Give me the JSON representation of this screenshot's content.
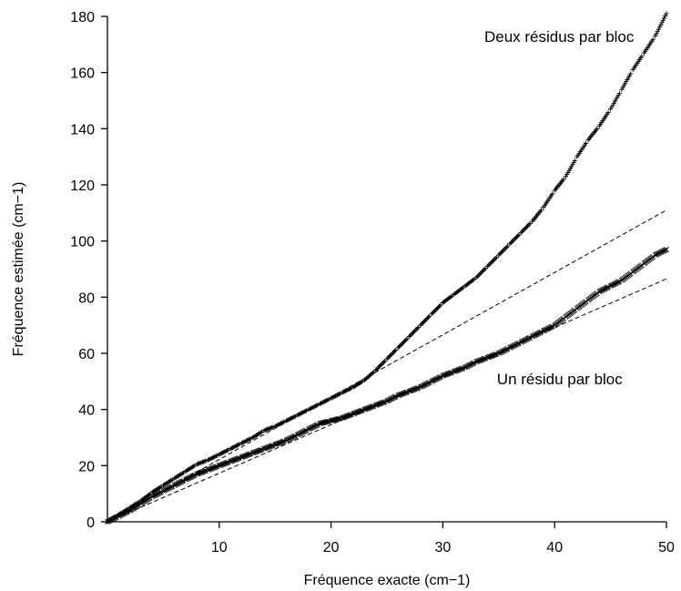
{
  "chart_data": {
    "type": "scatter",
    "title": "",
    "xlabel": "Fréquence exacte (cm−1)",
    "ylabel": "Fréquence estimée (cm−1)",
    "xlim": [
      0,
      50
    ],
    "ylim": [
      0,
      180
    ],
    "xticks": [
      10,
      20,
      30,
      40,
      50
    ],
    "yticks": [
      0,
      20,
      40,
      60,
      80,
      100,
      120,
      140,
      160,
      180
    ],
    "grid": false,
    "legend": "none",
    "colors": {
      "marks": "#000000",
      "axes": "#000000"
    },
    "annotations": [
      {
        "text": "Deux résidus par bloc",
        "x": 30,
        "y": 171
      },
      {
        "text": "Un résidu par bloc",
        "x": 35,
        "y": 49
      }
    ],
    "series": [
      {
        "marker": "plus",
        "x": [
          0,
          1,
          2,
          3,
          4,
          5,
          6,
          7,
          8,
          9,
          10,
          11,
          12,
          13,
          14,
          15,
          16,
          17,
          18,
          19,
          20,
          21,
          22,
          23,
          24,
          25,
          26,
          27,
          28,
          29,
          30,
          31,
          32,
          33,
          34,
          35,
          36,
          37,
          38,
          39,
          40,
          41,
          42,
          43,
          44,
          45,
          46,
          47,
          48,
          49,
          50
        ],
        "y": [
          0,
          2.5,
          5,
          7.5,
          10.5,
          13,
          15.5,
          18,
          20.5,
          22,
          24,
          26,
          28,
          30,
          32.5,
          34,
          36,
          38,
          40,
          42,
          44,
          46,
          48,
          50.5,
          54,
          58,
          62,
          66,
          70,
          74,
          78,
          81,
          84,
          87,
          91,
          95,
          99,
          103,
          107,
          112,
          118,
          123,
          130,
          136,
          141,
          147,
          154,
          161,
          167,
          173,
          181
        ]
      },
      {
        "marker": "cross",
        "x": [
          0,
          1,
          2,
          3,
          4,
          5,
          6,
          7,
          8,
          9,
          10,
          11,
          12,
          13,
          14,
          15,
          16,
          17,
          18,
          19,
          20,
          21,
          22,
          23,
          24,
          25,
          26,
          27,
          28,
          29,
          30,
          31,
          32,
          33,
          34,
          35,
          36,
          37,
          38,
          39,
          40,
          41,
          42,
          43,
          44,
          45,
          46,
          47,
          48,
          49,
          50
        ],
        "y": [
          0,
          2,
          4,
          6.5,
          9,
          11,
          13,
          15,
          17,
          18.5,
          20,
          21.5,
          23,
          24.5,
          26,
          27.5,
          29,
          31,
          33,
          35,
          36,
          37,
          38.5,
          40,
          41.5,
          43,
          45,
          46.5,
          48,
          50,
          52,
          53.5,
          55,
          57,
          58.5,
          60,
          62,
          64,
          66,
          68,
          70,
          73,
          76,
          79,
          82,
          84,
          86,
          89,
          92,
          95,
          97
        ]
      },
      {
        "style": "dashed-line",
        "x": [
          0,
          50
        ],
        "y": [
          0,
          111
        ]
      },
      {
        "style": "dashed-line",
        "x": [
          0,
          50
        ],
        "y": [
          0,
          86.5
        ]
      }
    ]
  }
}
